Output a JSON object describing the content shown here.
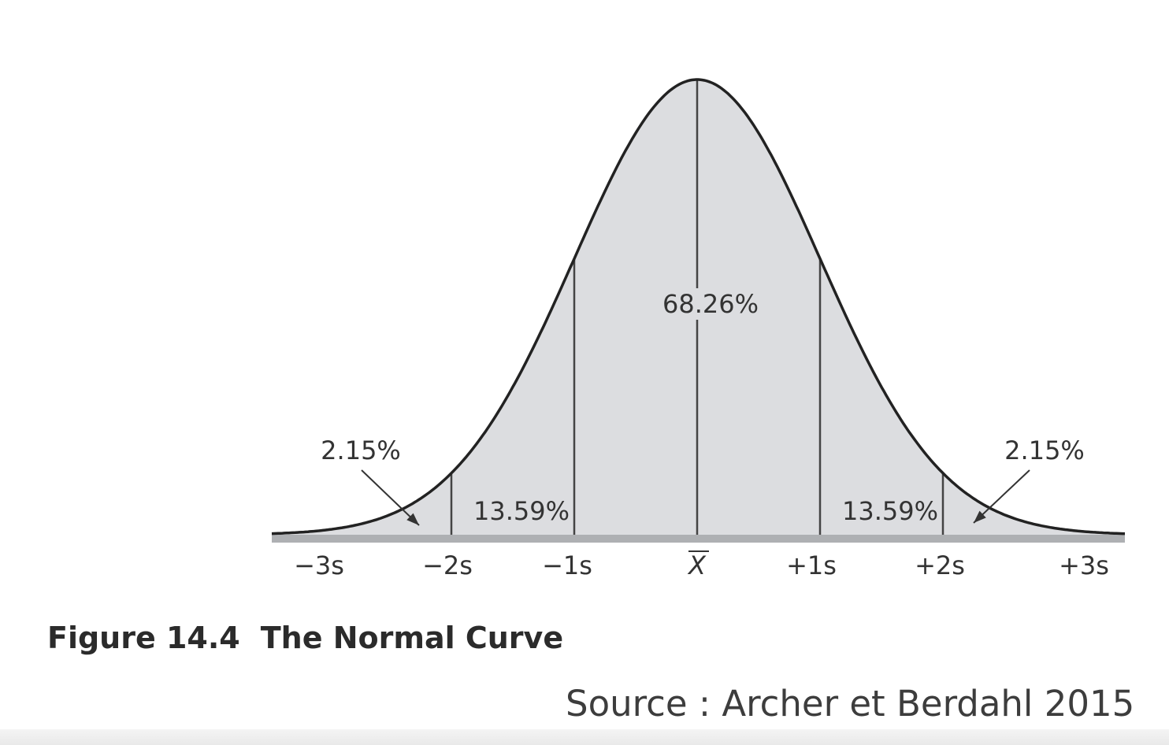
{
  "chart_data": {
    "type": "area",
    "distribution": "normal",
    "xlabel": "",
    "ylabel": "",
    "xlim": [
      -3.4,
      3.4
    ],
    "tick_values": [
      -3,
      -2,
      -1,
      0,
      1,
      2,
      3
    ],
    "tick_labels": [
      "−3s",
      "−2s",
      "−1s",
      "X",
      "+1s",
      "+2s",
      "+3s"
    ],
    "dividers": [
      -2,
      -1,
      0,
      1,
      2
    ],
    "regions": [
      {
        "label": "2.15%",
        "from": -3,
        "to": -2,
        "value": 2.15
      },
      {
        "label": "13.59%",
        "from": -2,
        "to": -1,
        "value": 13.59
      },
      {
        "label": "68.26%",
        "from": -1,
        "to": 1,
        "value": 68.26
      },
      {
        "label": "13.59%",
        "from": 1,
        "to": 2,
        "value": 13.59
      },
      {
        "label": "2.15%",
        "from": 2,
        "to": 3,
        "value": 2.15
      }
    ],
    "fill_color": "#dcdde0",
    "curve_color": "#222222",
    "line_color": "#444444"
  },
  "caption": {
    "figure_number": "Figure 14.4",
    "title": "The Normal Curve"
  },
  "source": "Source : Archer et Berdahl 2015"
}
